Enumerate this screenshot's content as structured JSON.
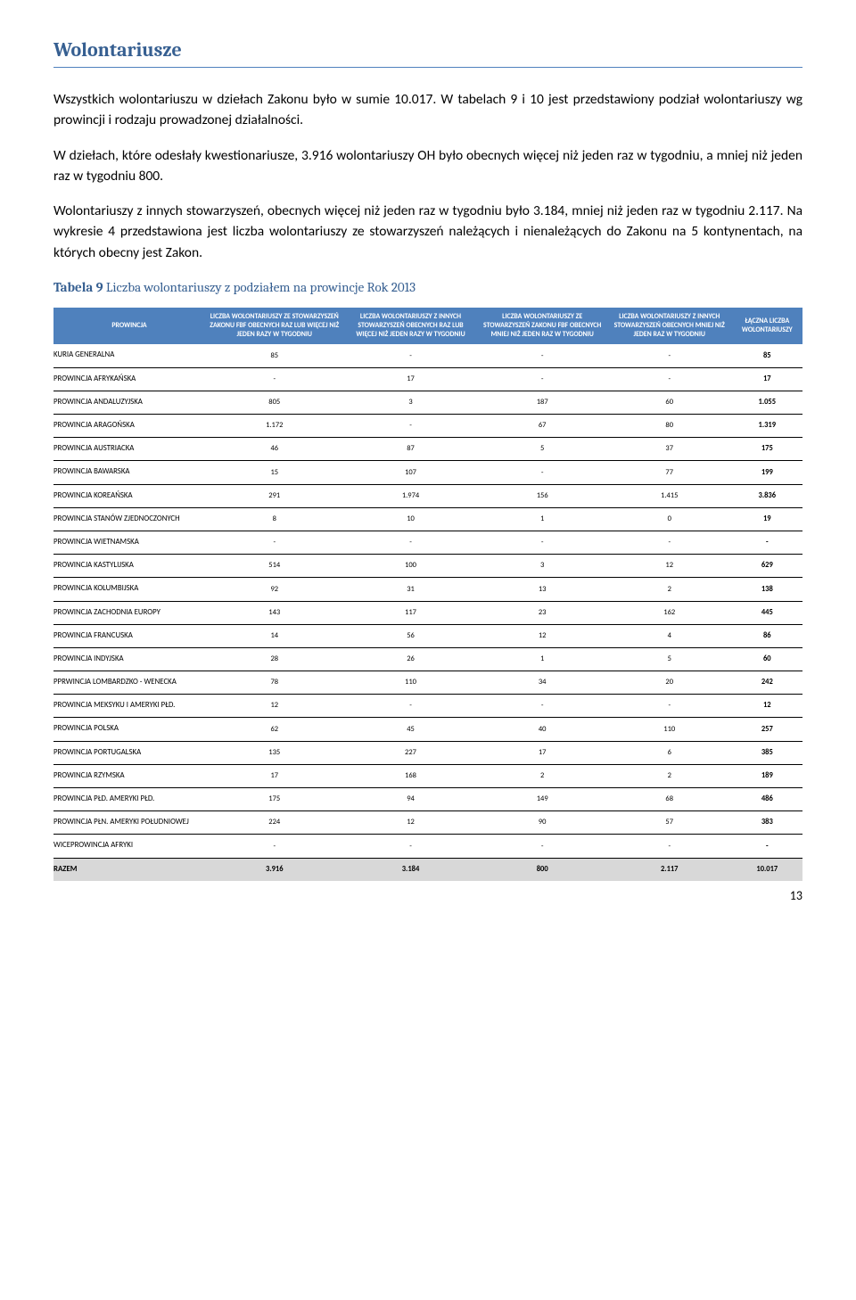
{
  "heading": "Wolontariusze",
  "paragraphs": [
    "Wszystkich wolontariuszu w dziełach Zakonu było w sumie 10.017. W tabelach 9 i 10 jest przedstawiony podział wolontariuszy wg prowincji i rodzaju prowadzonej działalności.",
    "W dziełach, które odesłały kwestionariusze, 3.916 wolontariuszy OH było obecnych więcej niż jeden raz w tygodniu, a mniej niż jeden raz w tygodniu 800.",
    "Wolontariuszy z innych stowarzyszeń, obecnych więcej niż jeden raz w tygodniu było 3.184, mniej niż jeden raz w tygodniu 2.117. Na wykresie 4 przedstawiona jest liczba wolontariuszy ze stowarzyszeń należących i nienależących do Zakonu na 5 kontynentach, na których obecny jest Zakon."
  ],
  "tableCaption": {
    "bold": "Tabela 9",
    "rest": " Liczba wolontariuszy z podziałem na prowincje Rok 2013"
  },
  "columns": [
    "PROWINCJA",
    "LICZBA WOLONTARIUSZY ZE STOWARZYSZEŃ ZAKONU FBF OBECNYCH RAZ LUB WIĘCEJ NIŻ JEDEN RAZY W TYGODNIU",
    "LICZBA WOLONTARIUSZY Z INNYCH STOWARZYSZEŃ OBECNYCH RAZ LUB WIĘCEJ NIŻ JEDEN RAZY W TYGODNIU",
    "LICZBA WOLONTARIUSZY ZE STOWARZYSZEŃ ZAKONU FBF OBECNYCH MNIEJ NIŻ JEDEN RAZ W TYGODNIU",
    "LICZBA WOLONTARIUSZY Z INNYCH STOWARZYSZEŃ OBECNYCH MNIEJ NIŻ JEDEN RAZ W TYGODNIU",
    "ŁĄCZNA LICZBA WOLONTARIUSZY"
  ],
  "rows": [
    [
      "KURIA GENERALNA",
      "85",
      "-",
      "-",
      "-",
      "85"
    ],
    [
      "PROWINCJA AFRYKAŃSKA",
      "-",
      "17",
      "-",
      "-",
      "17"
    ],
    [
      "PROWINCJA ANDALUZYJSKA",
      "805",
      "3",
      "187",
      "60",
      "1.055"
    ],
    [
      "PROWINCJA ARAGOŃSKA",
      "1.172",
      "-",
      "67",
      "80",
      "1.319"
    ],
    [
      "PROWINCJA AUSTRIACKA",
      "46",
      "87",
      "5",
      "37",
      "175"
    ],
    [
      "PROWINCJA BAWARSKA",
      "15",
      "107",
      "-",
      "77",
      "199"
    ],
    [
      "PROWINCJA KOREAŃSKA",
      "291",
      "1.974",
      "156",
      "1.415",
      "3.836"
    ],
    [
      "PROWINCJA STANÓW ZJEDNOCZONYCH",
      "8",
      "10",
      "1",
      "0",
      "19"
    ],
    [
      "PROWINCJA WIETNAMSKA",
      "-",
      "-",
      "-",
      "-",
      "-"
    ],
    [
      "PROWINCJA KASTYLIJSKA",
      "514",
      "100",
      "3",
      "12",
      "629"
    ],
    [
      "PROWINCJA KOLUMBIJSKA",
      "92",
      "31",
      "13",
      "2",
      "138"
    ],
    [
      "PROWINCJA ZACHODNIA EUROPY",
      "143",
      "117",
      "23",
      "162",
      "445"
    ],
    [
      "PROWINCJA FRANCUSKA",
      "14",
      "56",
      "12",
      "4",
      "86"
    ],
    [
      "PROWINCJA INDYJSKA",
      "28",
      "26",
      "1",
      "5",
      "60"
    ],
    [
      "PPRWINCJA LOMBARDZKO - WENECKA",
      "78",
      "110",
      "34",
      "20",
      "242"
    ],
    [
      "PROWINCJA MEKSYKU I AMERYKI PŁD.",
      "12",
      "-",
      "-",
      "-",
      "12"
    ],
    [
      "PROWINCJA POLSKA",
      "62",
      "45",
      "40",
      "110",
      "257"
    ],
    [
      "PROWINCJA PORTUGALSKA",
      "135",
      "227",
      "17",
      "6",
      "385"
    ],
    [
      "PROWINCJA RZYMSKA",
      "17",
      "168",
      "2",
      "2",
      "189"
    ],
    [
      "PROWINCJA PŁD. AMERYKI PŁD.",
      "175",
      "94",
      "149",
      "68",
      "486"
    ],
    [
      "PROWINCJA PŁN. AMERYKI POŁUDNIOWEJ",
      "224",
      "12",
      "90",
      "57",
      "383"
    ],
    [
      "WICEPROWINCJA AFRYKI",
      "-",
      "-",
      "-",
      "-",
      "-"
    ]
  ],
  "totalRow": [
    "RAZEM",
    "3.916",
    "3.184",
    "800",
    "2.117",
    "10.017"
  ],
  "pageNumber": "13"
}
